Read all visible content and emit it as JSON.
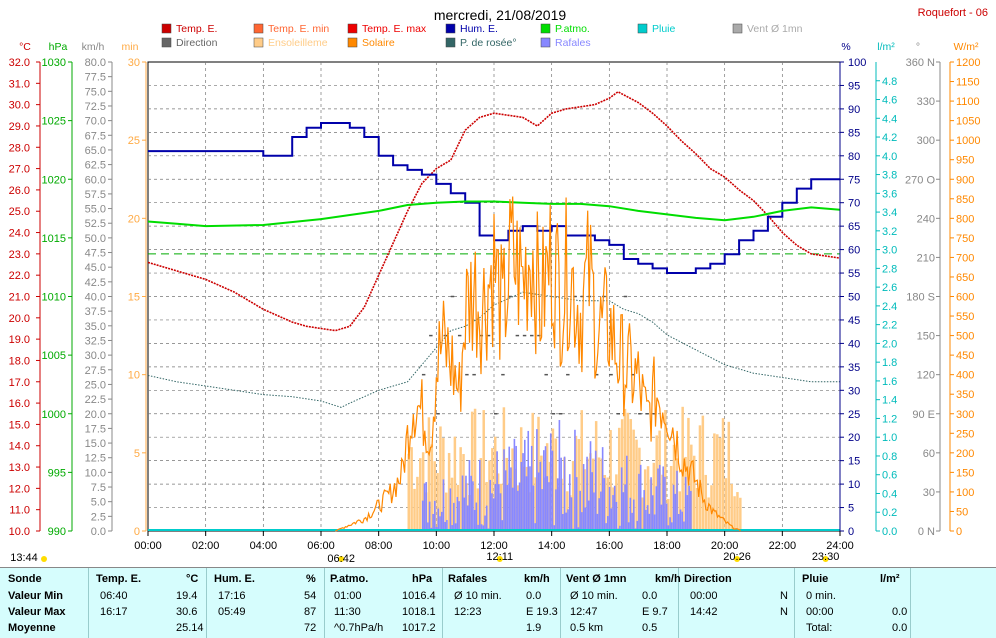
{
  "header": {
    "title": "mercredi, 21/08/2019",
    "station": "Roquefort - 06"
  },
  "legend": [
    {
      "label": "Temp. E.",
      "color": "#cc0000"
    },
    {
      "label": "Temp. E. min",
      "color": "#ff6633"
    },
    {
      "label": "Temp. E. max",
      "color": "#ee0000"
    },
    {
      "label": "Hum. E.",
      "color": "#0000aa"
    },
    {
      "label": "P.atmo.",
      "color": "#00dd00"
    },
    {
      "label": "Pluie",
      "color": "#00cccc"
    },
    {
      "label": "Vent Ø 1mn",
      "color": "#aaaaaa"
    },
    {
      "label": "Direction",
      "color": "#666666"
    },
    {
      "label": "Ensoleilleme",
      "color": "#ffcc88"
    },
    {
      "label": "Solaire",
      "color": "#ff8800"
    },
    {
      "label": "P. de rosée°",
      "color": "#336666"
    },
    {
      "label": "Rafales",
      "color": "#8888ff"
    }
  ],
  "chart_data": {
    "type": "line",
    "x_range": [
      "00:00",
      "24:00"
    ],
    "x_ticks": [
      "00:00",
      "02:00",
      "04:00",
      "06:00",
      "08:00",
      "10:00",
      "12:00",
      "14:00",
      "16:00",
      "18:00",
      "20:00",
      "22:00",
      "24:00"
    ],
    "axes": {
      "temp": {
        "unit": "°C",
        "ylim": [
          10,
          32
        ],
        "ticks": [
          "32.0",
          "31.0",
          "30.0",
          "29.0",
          "28.0",
          "27.0",
          "26.0",
          "25.0",
          "24.0",
          "23.0",
          "22.0",
          "21.0",
          "20.0",
          "19.0",
          "18.0",
          "17.0",
          "16.0",
          "15.0",
          "14.0",
          "13.0",
          "12.0",
          "11.0",
          "10.0"
        ]
      },
      "pressure": {
        "unit": "hPa",
        "ylim": [
          990,
          1030
        ],
        "ticks": [
          "1030",
          "1025",
          "1020",
          "1015",
          "1010",
          "1005",
          "1000",
          "995",
          "990"
        ]
      },
      "wind": {
        "unit": "km/h",
        "ylim": [
          0,
          80
        ],
        "ticks": [
          "80.0",
          "77.5",
          "75.0",
          "72.5",
          "70.0",
          "67.5",
          "65.0",
          "62.5",
          "60.0",
          "57.5",
          "55.0",
          "52.5",
          "50.0",
          "47.5",
          "45.0",
          "42.5",
          "40.0",
          "37.5",
          "35.0",
          "32.5",
          "30.0",
          "27.5",
          "25.0",
          "22.5",
          "20.0",
          "17.5",
          "15.0",
          "12.5",
          "10.0",
          "7.5",
          "5.0",
          "2.5",
          "0.0"
        ]
      },
      "sun_min": {
        "unit": "min",
        "ylim": [
          0,
          30
        ],
        "ticks": [
          "30",
          "25",
          "20",
          "15",
          "10",
          "5",
          "0"
        ]
      },
      "humidity": {
        "unit": "%",
        "ylim": [
          0,
          100
        ],
        "ticks": [
          "100",
          "95",
          "90",
          "85",
          "80",
          "75",
          "70",
          "65",
          "60",
          "55",
          "50",
          "45",
          "40",
          "35",
          "30",
          "25",
          "20",
          "15",
          "10",
          "5",
          "0"
        ]
      },
      "rain": {
        "unit": "l/m²",
        "ylim": [
          0,
          5
        ],
        "ticks": [
          "4.8",
          "4.6",
          "4.4",
          "4.2",
          "4.0",
          "3.8",
          "3.6",
          "3.4",
          "3.2",
          "3.0",
          "2.8",
          "2.6",
          "2.4",
          "2.2",
          "2.0",
          "1.8",
          "1.6",
          "1.4",
          "1.2",
          "1.0",
          "0.8",
          "0.6",
          "0.4",
          "0.2",
          "0.0"
        ]
      },
      "direction": {
        "unit": "°",
        "ylim": [
          0,
          360
        ],
        "ticks": [
          "360 N",
          "330",
          "300",
          "270 O",
          "240",
          "210",
          "180 S",
          "150",
          "120",
          "90 E",
          "60",
          "30",
          "0 N"
        ]
      },
      "solar": {
        "unit": "W/m²",
        "ylim": [
          0,
          1200
        ],
        "ticks": [
          "1200",
          "1150",
          "1100",
          "1050",
          "1000",
          "950",
          "900",
          "850",
          "800",
          "750",
          "700",
          "650",
          "600",
          "550",
          "500",
          "450",
          "400",
          "350",
          "300",
          "250",
          "200",
          "150",
          "100",
          "50",
          "0"
        ]
      }
    },
    "series": [
      {
        "name": "Temp. E.",
        "axis": "temp",
        "x": [
          0,
          1,
          2,
          3,
          4,
          5,
          5.5,
          6,
          6.5,
          7,
          7.5,
          8,
          8.5,
          9,
          9.5,
          10,
          10.5,
          11,
          11.5,
          12,
          12.5,
          13,
          13.5,
          14,
          14.5,
          15,
          15.5,
          16,
          16.3,
          17,
          17.5,
          18,
          18.5,
          19,
          19.5,
          20,
          20.5,
          21,
          21.5,
          22,
          22.5,
          23,
          24
        ],
        "y": [
          22.6,
          22.2,
          21.8,
          21.2,
          20.4,
          19.8,
          19.6,
          19.5,
          19.4,
          19.6,
          20.5,
          22,
          23.5,
          25,
          26.3,
          27,
          27.4,
          28.8,
          29.4,
          29.6,
          29.5,
          29.4,
          29.0,
          29.6,
          29.8,
          29.9,
          30.0,
          30.3,
          30.6,
          30.1,
          29.6,
          29.0,
          28.3,
          27.7,
          27.0,
          26.6,
          26.0,
          25.5,
          24.8,
          24.0,
          23.4,
          23.0,
          22.8
        ]
      },
      {
        "name": "Hum. E.",
        "axis": "humidity",
        "x": [
          0,
          0.5,
          2,
          4,
          5,
          5.5,
          6,
          7,
          7.5,
          8,
          8.5,
          9,
          9.5,
          10,
          10.5,
          11,
          11.5,
          12,
          12.5,
          13,
          13.5,
          14,
          14.5,
          15,
          15.5,
          16,
          16.5,
          17,
          17.5,
          18,
          18.5,
          19,
          19.5,
          20,
          20.5,
          21,
          21.5,
          22,
          22.5,
          23,
          24
        ],
        "y": [
          81,
          81,
          81,
          80,
          84,
          86,
          87,
          86,
          84,
          80,
          78,
          77,
          76,
          74,
          72,
          70,
          63,
          62,
          64,
          65,
          64,
          65,
          63,
          63,
          62,
          61,
          58,
          57,
          56,
          55,
          55,
          56,
          57,
          59,
          62,
          64,
          67,
          70,
          73,
          75,
          75
        ]
      },
      {
        "name": "P.atmo.",
        "axis": "pressure",
        "x": [
          0,
          1,
          2,
          4,
          6,
          8,
          9,
          10,
          11,
          12,
          13,
          14,
          15,
          16,
          17,
          18,
          19,
          20,
          21,
          22,
          23,
          24
        ],
        "y": [
          1016.4,
          1016.2,
          1016.0,
          1016.1,
          1016.6,
          1017.3,
          1017.8,
          1018.0,
          1018.1,
          1018.1,
          1018.0,
          1017.9,
          1017.9,
          1017.7,
          1017.3,
          1017.0,
          1016.7,
          1016.5,
          1016.8,
          1017.3,
          1017.6,
          1017.4
        ]
      },
      {
        "name": "P. de rosée°",
        "axis": "temp",
        "x": [
          0,
          1,
          2,
          3,
          4,
          5,
          6,
          6.7,
          7,
          8,
          9,
          10,
          10.5,
          11,
          11.5,
          12,
          13,
          14,
          15,
          16,
          16.5,
          17,
          17.5,
          18,
          19,
          20,
          21,
          22,
          23,
          24
        ],
        "y": [
          17.3,
          17.0,
          16.8,
          16.6,
          16.4,
          16.3,
          16.1,
          15.8,
          16.0,
          16.6,
          17.0,
          18.6,
          19.4,
          19.6,
          20.0,
          20.6,
          21.2,
          21.0,
          20.8,
          20.8,
          20.4,
          20.2,
          19.8,
          19.2,
          18.5,
          17.8,
          17.4,
          17.2,
          17.0,
          17.0
        ]
      }
    ],
    "solar_envelope": {
      "axis": "solar",
      "x": [
        6.5,
        7,
        7.5,
        8,
        8.4,
        8.8,
        9,
        9.2,
        9.5,
        9.8,
        10,
        10.2,
        10.5,
        10.8,
        11,
        11.3,
        11.6,
        12,
        12.3,
        12.6,
        13,
        13.3,
        13.6,
        14,
        14.3,
        14.6,
        15,
        15.3,
        15.6,
        16,
        16.3,
        16.6,
        17,
        17.3,
        17.6,
        18,
        18.3,
        18.6,
        19,
        19.3,
        19.6,
        20,
        20.3,
        20.6
      ],
      "y": [
        0,
        20,
        40,
        80,
        120,
        180,
        300,
        420,
        380,
        300,
        520,
        600,
        550,
        440,
        700,
        780,
        720,
        860,
        680,
        880,
        800,
        920,
        720,
        880,
        760,
        840,
        700,
        820,
        640,
        660,
        560,
        520,
        480,
        360,
        440,
        400,
        300,
        220,
        160,
        100,
        60,
        30,
        10,
        0
      ]
    },
    "gust_bars": {
      "axis": "wind",
      "x_start": 9.5,
      "x_end": 18.8,
      "max": 19.3
    },
    "sun_bars": {
      "axis": "sun_min",
      "x_start": 9.0,
      "x_end": 20.6
    },
    "direction_marks": {
      "axis": "direction",
      "x_start": 9.5,
      "x_end": 17.5
    },
    "reference_line": {
      "axis": "temp",
      "value": 23.0
    },
    "time_markers": [
      {
        "label": "13:44",
        "hour": 0.0
      },
      {
        "label": "06:42",
        "hour": 6.7
      },
      {
        "label": "12:11",
        "hour": 12.2
      },
      {
        "label": "20:26",
        "hour": 20.43
      },
      {
        "label": "23:30",
        "hour": 23.5
      }
    ]
  },
  "summary": {
    "headers": [
      "Sonde",
      "Temp. E.",
      "°C",
      "Hum. E.",
      "%",
      "P.atmo.",
      "hPa",
      "Rafales",
      "km/h",
      "Vent Ø 1mn",
      "km/h",
      "Direction",
      "Pluie",
      "l/m²"
    ],
    "rows": [
      [
        "Valeur Min",
        "06:40",
        "19.4",
        "17:16",
        "54",
        "01:00",
        "1016.4",
        "Ø 10 min.",
        "0.0",
        "Ø 10 min.",
        "0.0",
        "00:00",
        "N",
        "0 min.",
        ""
      ],
      [
        "Valeur Max",
        "16:17",
        "30.6",
        "05:49",
        "87",
        "11:30",
        "1018.1",
        "12:23",
        "E 19.3",
        "12:47",
        "E 9.7",
        "14:42",
        "N",
        "00:00",
        "0.0"
      ],
      [
        "Moyenne",
        "",
        "25.14",
        "",
        "72",
        "^0.7hPa/h",
        "1017.2",
        "",
        "1.9",
        "0.5 km",
        "0.5",
        "",
        "",
        "Total:",
        "0.0"
      ]
    ]
  }
}
